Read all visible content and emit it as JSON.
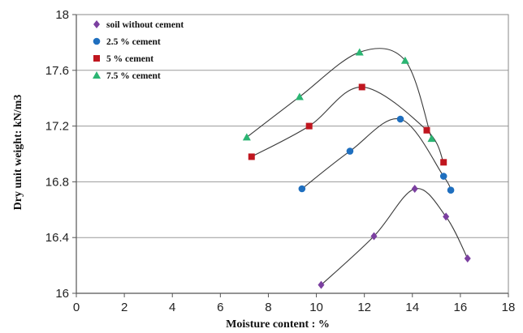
{
  "chart_data": {
    "type": "scatter",
    "xlabel": "Moisture content : %",
    "ylabel": "Dry unit weight: kN/m3",
    "xlim": [
      0,
      18
    ],
    "ylim": [
      16,
      18
    ],
    "x_ticks": [
      0,
      2,
      4,
      6,
      8,
      10,
      12,
      14,
      16,
      18
    ],
    "y_ticks": [
      16,
      16.4,
      16.8,
      17.2,
      17.6,
      18
    ],
    "y_tick_labels": [
      "16",
      "16.4",
      "16.8",
      "17.2",
      "17.6",
      "18"
    ],
    "grid": "horizontal",
    "legend_position": "top-left",
    "trendlines": "smooth curve through each series",
    "series": [
      {
        "name": "soil without cement",
        "marker": "diamond",
        "color": "#7b3fa0",
        "x": [
          10.2,
          12.4,
          14.1,
          15.4,
          16.3
        ],
        "y": [
          16.06,
          16.41,
          16.75,
          16.55,
          16.25
        ]
      },
      {
        "name": "2.5 % cement",
        "marker": "circle",
        "color": "#1f6fbf",
        "x": [
          9.4,
          11.4,
          13.5,
          15.3,
          15.6
        ],
        "y": [
          16.75,
          17.02,
          17.25,
          16.84,
          16.74
        ]
      },
      {
        "name": "5 % cement",
        "marker": "square",
        "color": "#c0161f",
        "x": [
          7.3,
          9.7,
          11.9,
          14.6,
          15.3
        ],
        "y": [
          16.98,
          17.2,
          17.48,
          17.17,
          16.94
        ]
      },
      {
        "name": "7.5 % cement",
        "marker": "triangle",
        "color": "#2bb573",
        "x": [
          7.1,
          9.3,
          11.8,
          13.7,
          14.8
        ],
        "y": [
          17.12,
          17.41,
          17.73,
          17.67,
          17.11
        ]
      }
    ]
  }
}
